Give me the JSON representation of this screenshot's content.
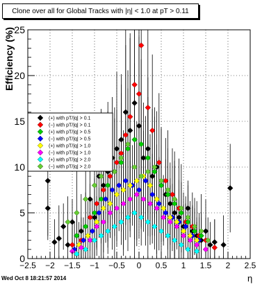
{
  "chart_data": {
    "type": "scatter",
    "title": "Clone  over all for Global Tracks with |η| < 1.0 at pT > 0.11",
    "xlabel": "η",
    "ylabel": "Efficiency (%)",
    "xlim": [
      -2.5,
      2.5
    ],
    "ylim": [
      0,
      25
    ],
    "x_ticks": [
      -2.5,
      -2,
      -1.5,
      -1,
      -0.5,
      0,
      0.5,
      1,
      1.5,
      2,
      2.5
    ],
    "x_tick_labels": [
      "−2.5",
      "−2",
      "−1.5",
      "−1",
      "−0.5",
      "0",
      "0.5",
      "1",
      "1.5",
      "2",
      "2.5"
    ],
    "y_ticks": [
      0,
      5,
      10,
      15,
      20,
      25
    ],
    "y_tick_labels": [
      "0",
      "5",
      "10",
      "15",
      "20",
      "25"
    ],
    "grid": true,
    "legend_position": "middle-left",
    "footer": "Wed Oct  8 18:21:57 2014",
    "series": [
      {
        "name": "(+) with pT/|q| > 0.1",
        "color": "#000000",
        "marker": "diamond",
        "points": [
          [
            -2.05,
            5.5
          ],
          [
            -1.9,
            1.8
          ],
          [
            -1.8,
            2.2
          ],
          [
            -1.7,
            3.5
          ],
          [
            -1.6,
            1.5
          ],
          [
            -1.5,
            4.0
          ],
          [
            -1.4,
            2.5
          ],
          [
            -1.3,
            3.0
          ],
          [
            -1.1,
            6.5
          ],
          [
            -1.0,
            4.5
          ],
          [
            -0.9,
            9.0
          ],
          [
            -0.8,
            8.0
          ],
          [
            -0.7,
            9.5
          ],
          [
            -0.6,
            11.0
          ],
          [
            -0.5,
            12.0
          ],
          [
            -0.4,
            13.0
          ],
          [
            -0.3,
            16.0
          ],
          [
            -0.2,
            14.0
          ],
          [
            -0.1,
            17.0
          ],
          [
            0.0,
            14.5
          ],
          [
            0.1,
            11.0
          ],
          [
            0.2,
            12.0
          ],
          [
            0.3,
            9.0
          ],
          [
            0.4,
            10.0
          ],
          [
            0.5,
            8.0
          ],
          [
            0.6,
            7.0
          ],
          [
            0.7,
            6.0
          ],
          [
            0.8,
            5.0
          ],
          [
            0.9,
            4.5
          ],
          [
            1.0,
            3.5
          ],
          [
            1.1,
            5.5
          ],
          [
            1.2,
            3.0
          ],
          [
            1.3,
            2.5
          ],
          [
            1.4,
            2.0
          ],
          [
            1.5,
            3.0
          ],
          [
            1.6,
            1.5
          ],
          [
            1.7,
            1.8
          ],
          [
            1.9,
            1.5
          ],
          [
            2.05,
            7.7
          ],
          [
            -2.05,
            8.5
          ]
        ]
      },
      {
        "name": "(−) with pT/|q| > 0.1",
        "color": "#ff0000",
        "marker": "diamond",
        "points": [
          [
            -1.5,
            1.5
          ],
          [
            -1.3,
            2.0
          ],
          [
            -1.1,
            4.5
          ],
          [
            -0.95,
            6.0
          ],
          [
            -0.8,
            7.5
          ],
          [
            -0.65,
            9.0
          ],
          [
            -0.5,
            10.5
          ],
          [
            -0.4,
            11.5
          ],
          [
            -0.3,
            13.5
          ],
          [
            -0.2,
            15.5
          ],
          [
            -0.1,
            19.0
          ],
          [
            0.0,
            18.0
          ],
          [
            0.05,
            23.3
          ],
          [
            0.2,
            16.5
          ],
          [
            0.3,
            14.0
          ],
          [
            0.45,
            10.5
          ],
          [
            0.6,
            8.5
          ],
          [
            0.75,
            7.0
          ],
          [
            0.9,
            5.5
          ],
          [
            1.05,
            4.0
          ],
          [
            1.2,
            3.5
          ],
          [
            1.35,
            2.5
          ],
          [
            1.5,
            2.0
          ],
          [
            1.7,
            1.2
          ]
        ]
      },
      {
        "name": "(+) with pT/|q| > 0.5",
        "color": "#00cc00",
        "marker": "diamond",
        "points": [
          [
            -1.4,
            2.5
          ],
          [
            -1.2,
            3.5
          ],
          [
            -1.0,
            5.0
          ],
          [
            -0.85,
            6.5
          ],
          [
            -0.7,
            8.0
          ],
          [
            -0.55,
            9.5
          ],
          [
            -0.4,
            10.5
          ],
          [
            -0.25,
            12.0
          ],
          [
            -0.1,
            13.0
          ],
          [
            0.05,
            12.5
          ],
          [
            0.2,
            11.0
          ],
          [
            0.35,
            9.5
          ],
          [
            0.5,
            8.0
          ],
          [
            0.65,
            7.0
          ],
          [
            0.8,
            6.0
          ],
          [
            0.95,
            5.0
          ],
          [
            1.1,
            4.0
          ],
          [
            1.25,
            3.0
          ],
          [
            1.4,
            2.5
          ]
        ]
      },
      {
        "name": "(−) with pT/|q| > 0.5",
        "color": "#0000ff",
        "marker": "diamond",
        "points": [
          [
            -1.45,
            1.0
          ],
          [
            -1.25,
            2.0
          ],
          [
            -1.05,
            3.0
          ],
          [
            -0.9,
            5.0
          ],
          [
            -0.75,
            6.5
          ],
          [
            -0.6,
            7.5
          ],
          [
            -0.45,
            8.0
          ],
          [
            -0.3,
            8.5
          ],
          [
            -0.15,
            8.0
          ],
          [
            0.0,
            7.5
          ],
          [
            0.15,
            8.5
          ],
          [
            0.3,
            7.0
          ],
          [
            0.45,
            6.0
          ],
          [
            0.6,
            5.0
          ],
          [
            0.75,
            4.5
          ],
          [
            0.9,
            4.0
          ],
          [
            1.05,
            3.5
          ],
          [
            1.2,
            2.5
          ],
          [
            1.35,
            2.0
          ]
        ]
      },
      {
        "name": "(+) with pT/|q| > 1.0",
        "color": "#ffff00",
        "marker": "diamond",
        "points": [
          [
            -1.35,
            1.5
          ],
          [
            -1.15,
            2.5
          ],
          [
            -0.95,
            4.0
          ],
          [
            -0.8,
            5.5
          ],
          [
            -0.65,
            6.0
          ],
          [
            -0.5,
            7.0
          ],
          [
            -0.35,
            7.5
          ],
          [
            -0.2,
            8.0
          ],
          [
            -0.05,
            8.5
          ],
          [
            0.1,
            9.0
          ],
          [
            0.25,
            8.0
          ],
          [
            0.4,
            6.5
          ],
          [
            0.55,
            5.5
          ],
          [
            0.7,
            4.5
          ],
          [
            0.85,
            4.0
          ],
          [
            1.0,
            3.0
          ],
          [
            1.15,
            2.5
          ],
          [
            1.3,
            2.0
          ]
        ]
      },
      {
        "name": "(−) with pT/|q| > 1.0",
        "color": "#ff00ff",
        "marker": "diamond",
        "points": [
          [
            -1.5,
            0.8
          ],
          [
            -1.3,
            1.2
          ],
          [
            -1.1,
            2.0
          ],
          [
            -0.95,
            3.5
          ],
          [
            -0.8,
            4.0
          ],
          [
            -0.65,
            5.0
          ],
          [
            -0.5,
            5.5
          ],
          [
            -0.35,
            6.0
          ],
          [
            -0.2,
            6.5
          ],
          [
            -0.05,
            7.0
          ],
          [
            0.1,
            6.5
          ],
          [
            0.25,
            6.0
          ],
          [
            0.4,
            5.5
          ],
          [
            0.55,
            4.5
          ],
          [
            0.7,
            4.0
          ],
          [
            0.85,
            3.5
          ],
          [
            1.0,
            2.5
          ],
          [
            1.15,
            2.0
          ],
          [
            1.3,
            1.5
          ],
          [
            1.5,
            1.0
          ]
        ]
      },
      {
        "name": "(+) with pT/|q| > 2.0",
        "color": "#00ffff",
        "marker": "diamond",
        "points": [
          [
            -1.4,
            0.5
          ],
          [
            -1.2,
            1.0
          ],
          [
            -1.0,
            2.0
          ],
          [
            -0.85,
            2.5
          ],
          [
            -0.7,
            3.0
          ],
          [
            -0.55,
            3.5
          ],
          [
            -0.4,
            4.0
          ],
          [
            -0.25,
            4.5
          ],
          [
            -0.1,
            5.0
          ],
          [
            0.05,
            4.5
          ],
          [
            0.2,
            4.0
          ],
          [
            0.35,
            3.5
          ],
          [
            0.5,
            3.0
          ],
          [
            0.65,
            2.5
          ],
          [
            0.8,
            2.0
          ],
          [
            0.95,
            1.5
          ],
          [
            1.1,
            1.0
          ],
          [
            1.3,
            0.8
          ]
        ]
      },
      {
        "name": "(−) with pT/|q| > 2.0",
        "color": "#66cc33",
        "marker": "diamond",
        "points": [
          [
            -1.6,
            4.0
          ],
          [
            -1.4,
            5.0
          ],
          [
            -1.2,
            6.5
          ],
          [
            -1.0,
            8.0
          ],
          [
            -0.85,
            9.0
          ],
          [
            -0.7,
            10.0
          ],
          [
            -0.55,
            9.5
          ],
          [
            -0.4,
            11.0
          ],
          [
            -0.25,
            12.5
          ],
          [
            -0.1,
            10.0
          ],
          [
            0.05,
            9.0
          ],
          [
            0.2,
            9.5
          ],
          [
            0.35,
            10.0
          ],
          [
            0.5,
            8.5
          ],
          [
            0.65,
            7.5
          ],
          [
            0.8,
            6.5
          ],
          [
            0.95,
            5.5
          ],
          [
            1.1,
            4.5
          ],
          [
            1.25,
            3.5
          ],
          [
            1.4,
            3.0
          ],
          [
            1.55,
            2.0
          ]
        ]
      }
    ]
  }
}
